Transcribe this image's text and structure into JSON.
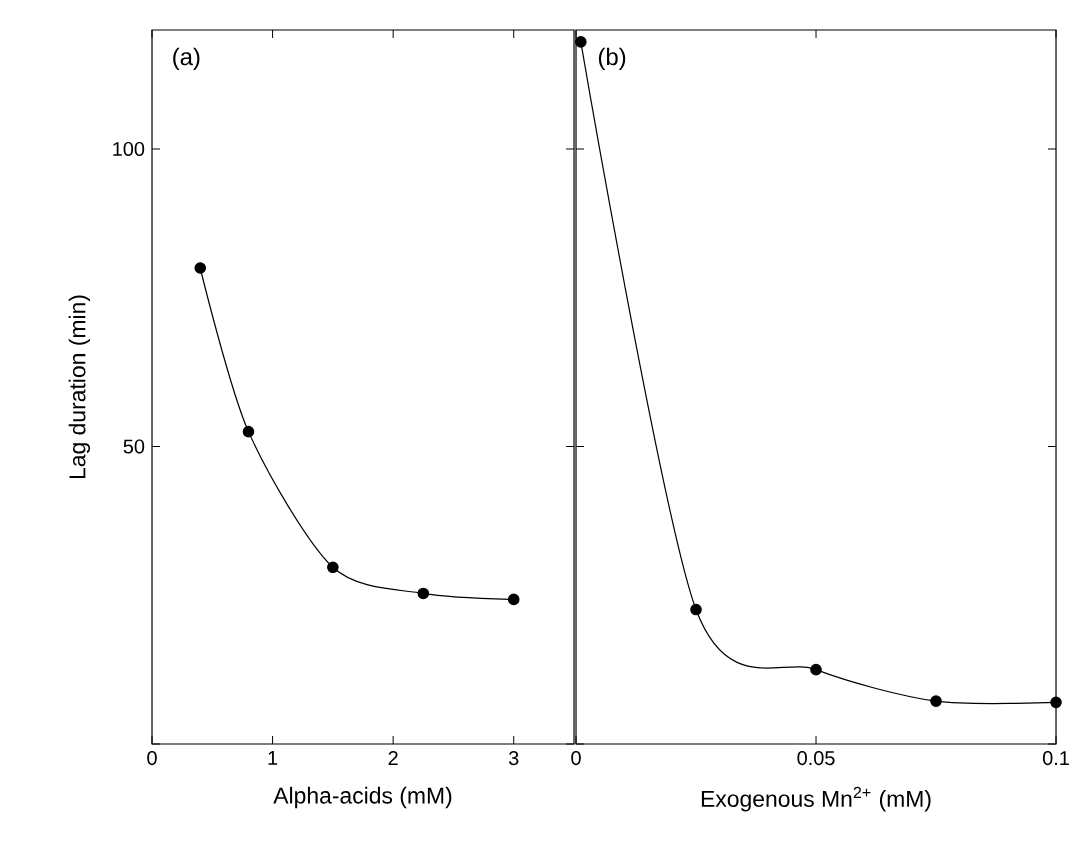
{
  "chart_data": [
    {
      "type": "line",
      "xlabel": "Alpha-acids (mM)",
      "ylabel": "Lag duration (min)",
      "annotations": [
        "(a)"
      ],
      "x": [
        0.4,
        0.8,
        1.5,
        2.25,
        3.0
      ],
      "values": [
        80,
        52.5,
        29.7,
        25.3,
        24.3
      ],
      "color": "#000000",
      "marker": "circle",
      "xlim": [
        0,
        3.5
      ],
      "ylim": [
        0,
        120
      ],
      "xticks": [
        0,
        1,
        2,
        3
      ],
      "yticks": [
        {
          "value": 0,
          "label": null
        },
        50,
        100
      ]
    },
    {
      "type": "line",
      "xlabel": "Exogenous Mn$^{2+}$ (mM)",
      "annotations": [
        "(b)"
      ],
      "x": [
        0.001,
        0.025,
        0.05,
        0.075,
        0.1
      ],
      "values": [
        118,
        22.6,
        12.5,
        7.2,
        7
      ],
      "color": "#000000",
      "marker": "circle",
      "xlim": [
        0,
        0.1
      ],
      "ylim": [
        0,
        120
      ],
      "xticks": [
        0,
        0.05,
        0.1
      ],
      "yticks": [
        {
          "value": 0,
          "label": null
        },
        50,
        100
      ],
      "tick_labels": "x"
    }
  ]
}
